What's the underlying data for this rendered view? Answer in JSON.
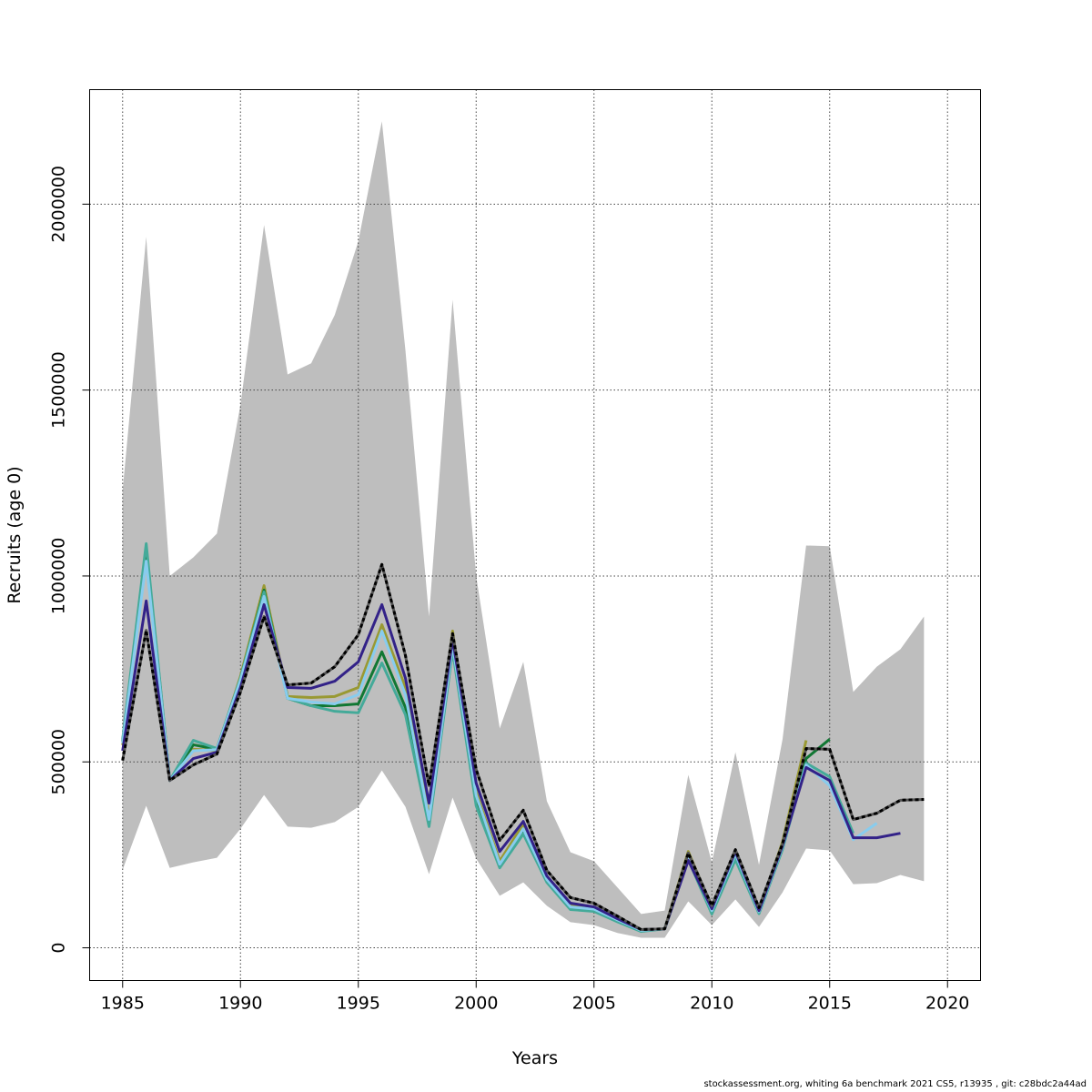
{
  "chart_data": {
    "type": "line",
    "title": "",
    "xlabel": "Years",
    "ylabel": "Recruits (age 0)",
    "xlim": [
      1983.6,
      2021.4
    ],
    "ylim": [
      -88000,
      2308000
    ],
    "grid": true,
    "x_ticks": [
      "1985",
      "1990",
      "1995",
      "2000",
      "2005",
      "2010",
      "2015",
      "2020"
    ],
    "y_ticks": [
      "0",
      "500000",
      "1000000",
      "1500000",
      "2000000"
    ],
    "start_year": 1985,
    "confidence_band": {
      "color": "#bebebe",
      "upper": [
        1230000,
        1912000,
        1000000,
        1050000,
        1114000,
        1460000,
        1944000,
        1542000,
        1572000,
        1702000,
        1900000,
        2223000,
        1606000,
        891000,
        1743000,
        1000000,
        590000,
        769000,
        394000,
        257000,
        233000,
        162000,
        91000,
        100000,
        465000,
        230000,
        526000,
        223000,
        561000,
        1082000,
        1080000,
        688000,
        756000,
        803000,
        891000
      ],
      "lower": [
        210000,
        382000,
        215000,
        230000,
        242000,
        320000,
        411000,
        326000,
        323000,
        338000,
        379000,
        477000,
        379000,
        198000,
        404000,
        240000,
        140000,
        176000,
        113000,
        69000,
        61000,
        40000,
        27000,
        27000,
        125000,
        61000,
        130000,
        56000,
        149000,
        267000,
        262000,
        171000,
        174000,
        196000,
        179000
      ]
    },
    "series": [
      {
        "end_year": 2014,
        "color": "#999933",
        "dashed": false,
        "values": [
          545000,
          1067000,
          450000,
          534000,
          531000,
          730000,
          974000,
          676000,
          673000,
          676000,
          700000,
          869000,
          700000,
          350000,
          852000,
          419000,
          233000,
          333000,
          186000,
          113000,
          105000,
          78000,
          49000,
          51000,
          259000,
          108000,
          262000,
          100000,
          285000,
          558000
        ]
      },
      {
        "end_year": 2015,
        "color": "#117733",
        "dashed": false,
        "values": [
          555000,
          1075000,
          450000,
          546000,
          534000,
          722000,
          962000,
          671000,
          651000,
          651000,
          656000,
          796000,
          646000,
          338000,
          803000,
          394000,
          223000,
          311000,
          181000,
          108000,
          103000,
          73000,
          46000,
          51000,
          247000,
          98000,
          247000,
          95000,
          270000,
          509000,
          561000
        ]
      },
      {
        "end_year": 2016,
        "color": "#44aa99",
        "dashed": false,
        "values": [
          560000,
          1087000,
          450000,
          558000,
          536000,
          725000,
          957000,
          671000,
          651000,
          636000,
          632000,
          766000,
          627000,
          326000,
          800000,
          382000,
          215000,
          306000,
          176000,
          103000,
          98000,
          70000,
          44000,
          51000,
          237000,
          91000,
          237000,
          92000,
          265000,
          497000,
          460000,
          308000
        ]
      },
      {
        "end_year": 2017,
        "color": "#88ccee",
        "dashed": false,
        "values": [
          550000,
          1040000,
          450000,
          530000,
          533000,
          720000,
          945000,
          671000,
          661000,
          656000,
          681000,
          852000,
          680000,
          345000,
          815000,
          410000,
          225000,
          320000,
          184000,
          110000,
          104000,
          75000,
          47000,
          51000,
          245000,
          100000,
          252000,
          97000,
          272000,
          492000,
          436000,
          291000,
          335000
        ]
      },
      {
        "end_year": 2018,
        "color": "#332288",
        "dashed": false,
        "values": [
          530000,
          933000,
          450000,
          509000,
          526000,
          700000,
          923000,
          700000,
          698000,
          717000,
          769000,
          923000,
          725000,
          389000,
          830000,
          443000,
          259000,
          340000,
          193000,
          120000,
          110000,
          78000,
          49000,
          51000,
          235000,
          105000,
          259000,
          100000,
          275000,
          485000,
          450000,
          296000,
          296000,
          308000
        ]
      },
      {
        "end_year": 2019,
        "color": "#000000",
        "dashed": true,
        "values": [
          504000,
          854000,
          450000,
          492000,
          521000,
          688000,
          891000,
          707000,
          712000,
          756000,
          842000,
          1031000,
          786000,
          436000,
          845000,
          480000,
          289000,
          370000,
          208000,
          135000,
          120000,
          85000,
          49000,
          51000,
          255000,
          113000,
          264000,
          108000,
          280000,
          536000,
          534000,
          345000,
          362000,
          397000,
          399000
        ]
      }
    ]
  },
  "footer": "stockassessment.org, whiting  6a  benchmark  2021  CS5, r13935 , git: c28bdc2a44ad"
}
